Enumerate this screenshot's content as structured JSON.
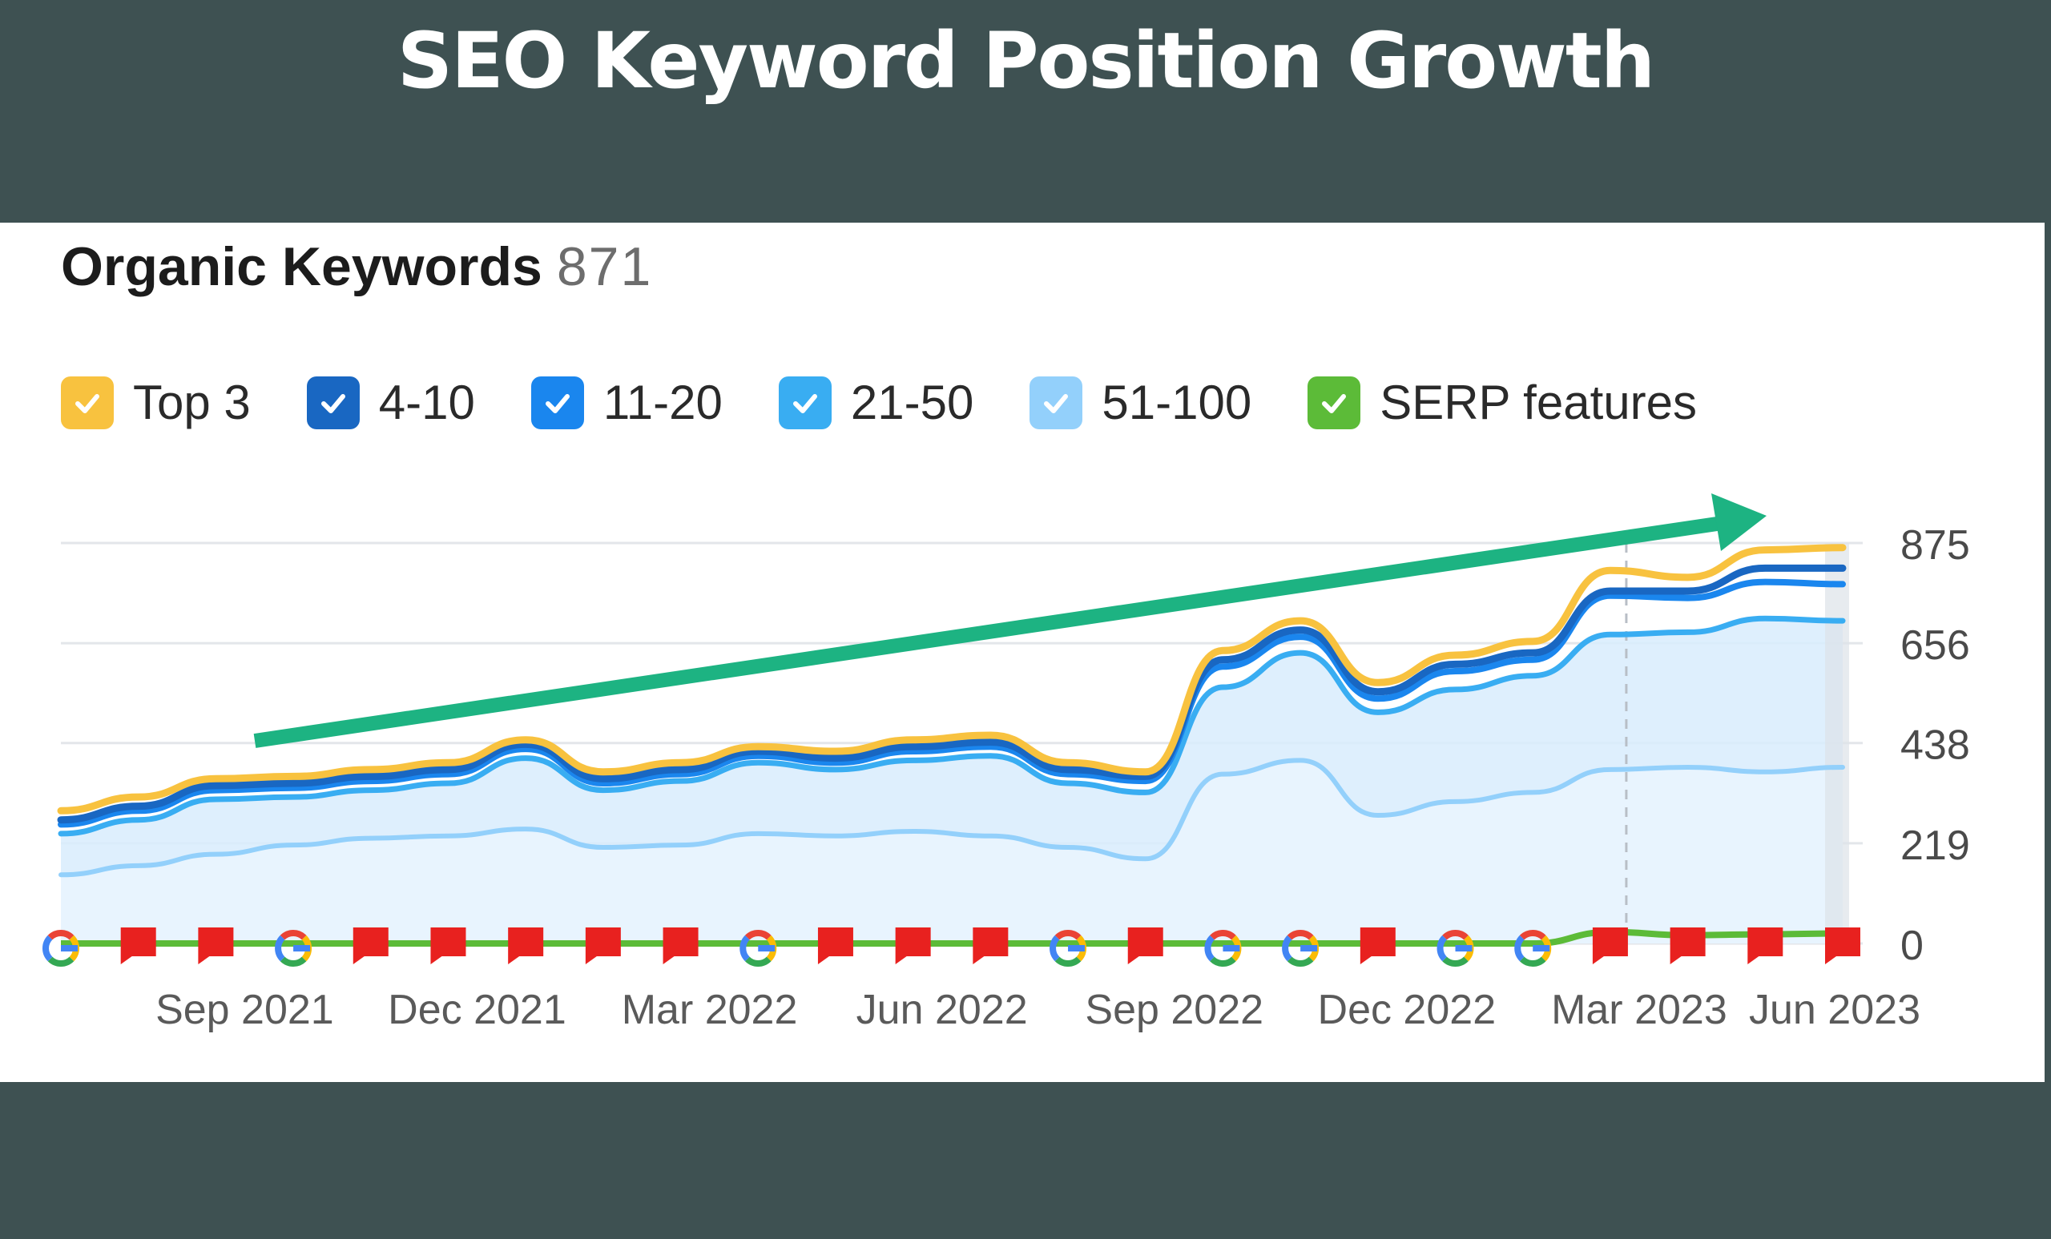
{
  "headline": "SEO Keyword Position Growth",
  "panel": {
    "title": "Organic Keywords",
    "count": "871"
  },
  "legend": [
    {
      "label": "Top 3",
      "color": "#f8c23f"
    },
    {
      "label": "4-10",
      "color": "#1967c2"
    },
    {
      "label": "11-20",
      "color": "#1a86ee"
    },
    {
      "label": "21-50",
      "color": "#39adf2"
    },
    {
      "label": "51-100",
      "color": "#93d0fb"
    },
    {
      "label": "SERP features",
      "color": "#5cbb38"
    }
  ],
  "colors": {
    "top3": "#f8c23f",
    "r4_10": "#1967c2",
    "r11_20": "#1a86ee",
    "r21_50": "#39adf2",
    "r51_100": "#93d0fb",
    "serp": "#5cbb38",
    "area_fill": "#d8ecfd",
    "area_fill_light": "#e8f4fe",
    "trend_arrow": "#1db382",
    "flag": "#e8211f"
  },
  "chart_data": {
    "type": "area",
    "title": "Organic Keywords",
    "xlabel": "",
    "ylabel": "",
    "x": [
      "2021-07-01",
      "2021-08-01",
      "2021-09-01",
      "2021-10-01",
      "2021-11-01",
      "2021-12-01",
      "2022-01-01",
      "2022-02-01",
      "2022-03-01",
      "2022-04-01",
      "2022-05-01",
      "2022-06-01",
      "2022-07-01",
      "2022-08-01",
      "2022-09-01",
      "2022-10-01",
      "2022-11-01",
      "2022-12-01",
      "2023-01-01",
      "2023-02-01",
      "2023-03-01",
      "2023-04-01",
      "2023-05-01",
      "2023-06-01"
    ],
    "x_tick_labels": [
      "Sep 2021",
      "Dec 2021",
      "Mar 2022",
      "Jun 2022",
      "Sep 2022",
      "Dec 2022",
      "Mar 2023",
      "Jun 2023"
    ],
    "y_ticks": [
      0,
      219,
      438,
      656,
      875
    ],
    "ylim": [
      0,
      875
    ],
    "grid": true,
    "legend_position": "top-left",
    "series": [
      {
        "name": "Top 3",
        "values": [
          290,
          320,
          360,
          365,
          380,
          395,
          445,
          375,
          395,
          430,
          420,
          445,
          455,
          395,
          375,
          640,
          705,
          570,
          630,
          660,
          815,
          800,
          860,
          865
        ]
      },
      {
        "name": "4-10",
        "values": [
          270,
          300,
          345,
          350,
          365,
          380,
          435,
          360,
          380,
          420,
          405,
          430,
          440,
          380,
          365,
          620,
          685,
          550,
          610,
          635,
          770,
          770,
          820,
          820
        ]
      },
      {
        "name": "11-20",
        "values": [
          260,
          290,
          335,
          340,
          355,
          370,
          425,
          350,
          370,
          410,
          395,
          420,
          430,
          370,
          355,
          605,
          670,
          535,
          595,
          620,
          760,
          755,
          790,
          785
        ]
      },
      {
        "name": "21-50",
        "values": [
          240,
          270,
          315,
          320,
          335,
          350,
          405,
          335,
          355,
          395,
          380,
          400,
          410,
          350,
          330,
          560,
          635,
          505,
          555,
          585,
          675,
          680,
          710,
          705
        ]
      },
      {
        "name": "51-100",
        "values": [
          150,
          170,
          195,
          215,
          230,
          235,
          250,
          210,
          215,
          240,
          235,
          245,
          235,
          210,
          185,
          370,
          400,
          280,
          310,
          330,
          380,
          385,
          375,
          385
        ]
      },
      {
        "name": "SERP features",
        "values": [
          0,
          0,
          0,
          0,
          0,
          0,
          0,
          0,
          0,
          0,
          0,
          0,
          0,
          0,
          0,
          0,
          0,
          0,
          0,
          0,
          25,
          18,
          20,
          22
        ]
      }
    ],
    "annotations": [
      {
        "type": "trend-arrow",
        "direction": "up"
      },
      {
        "type": "event-markers",
        "markers": [
          "google",
          "flag",
          "flag",
          "google",
          "flag",
          "flag",
          "flag",
          "flag",
          "flag",
          "google",
          "flag",
          "flag",
          "flag",
          "google",
          "flag",
          "google",
          "google",
          "flag",
          "google",
          "google",
          "flag",
          "flag",
          "flag",
          "flag"
        ]
      }
    ]
  }
}
